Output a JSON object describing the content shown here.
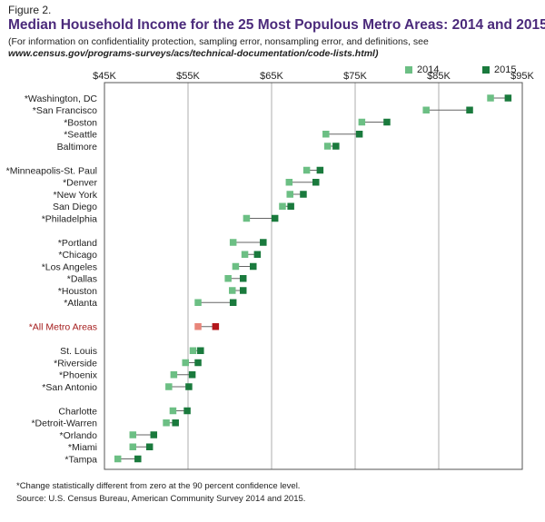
{
  "figure_label": "Figure 2.",
  "title": "Median Household Income for the 25 Most Populous Metro Areas: 2014 and 2015",
  "subtitle": {
    "line1": "(For information on confidentiality protection, sampling error, nonsampling error, and definitions, see",
    "line2": "www.census.gov/programs-surveys/acs/technical-documentation/code-lists.html)"
  },
  "footnotes": {
    "note": "*Change statistically different from zero at the 90 percent confidence level.",
    "source": "Source: U.S. Census Bureau, American Community Survey 2014 and 2015."
  },
  "colors": {
    "c2014": "#6cbf84",
    "c2015": "#1a7a3d",
    "all_2014": "#e8857a",
    "all_2015": "#b3171c",
    "all_label": "#a41c1c",
    "grid": "#9a9a9a",
    "connector": "#666666",
    "axis_box": "#555555"
  },
  "chart_data": {
    "type": "scatter",
    "xlim": [
      45000,
      95000
    ],
    "xticks": [
      {
        "value": 45000,
        "label": "$45K"
      },
      {
        "value": 55000,
        "label": "$55K"
      },
      {
        "value": 65000,
        "label": "$65K"
      },
      {
        "value": 75000,
        "label": "$75K"
      },
      {
        "value": 85000,
        "label": "$85K"
      },
      {
        "value": 95000,
        "label": "$95K"
      }
    ],
    "series": [
      {
        "name": "2014"
      },
      {
        "name": "2015"
      }
    ],
    "groups": [
      [
        {
          "name": "*Washington, DC",
          "v2014": 91200,
          "v2015": 93300
        },
        {
          "name": "*San Francisco",
          "v2014": 83500,
          "v2015": 88700
        },
        {
          "name": "*Boston",
          "v2014": 75800,
          "v2015": 78800
        },
        {
          "name": "*Seattle",
          "v2014": 71500,
          "v2015": 75500
        },
        {
          "name": "Baltimore",
          "v2014": 71700,
          "v2015": 72700
        }
      ],
      [
        {
          "name": "*Minneapolis-St. Paul",
          "v2014": 69200,
          "v2015": 70800
        },
        {
          "name": "*Denver",
          "v2014": 67100,
          "v2015": 70300
        },
        {
          "name": "*New York",
          "v2014": 67200,
          "v2015": 68800
        },
        {
          "name": "San Diego",
          "v2014": 66300,
          "v2015": 67300
        },
        {
          "name": "*Philadelphia",
          "v2014": 62000,
          "v2015": 65400
        }
      ],
      [
        {
          "name": "*Portland",
          "v2014": 60400,
          "v2015": 64000
        },
        {
          "name": "*Chicago",
          "v2014": 61800,
          "v2015": 63300
        },
        {
          "name": "*Los Angeles",
          "v2014": 60700,
          "v2015": 62800
        },
        {
          "name": "*Dallas",
          "v2014": 59800,
          "v2015": 61600
        },
        {
          "name": "*Houston",
          "v2014": 60300,
          "v2015": 61600
        },
        {
          "name": "*Atlanta",
          "v2014": 56200,
          "v2015": 60400
        }
      ],
      [
        {
          "name": "*All Metro Areas",
          "v2014": 56200,
          "v2015": 58300,
          "highlight": true
        }
      ],
      [
        {
          "name": "St. Louis",
          "v2014": 55600,
          "v2015": 56500
        },
        {
          "name": "*Riverside",
          "v2014": 54700,
          "v2015": 56200
        },
        {
          "name": "*Phoenix",
          "v2014": 53300,
          "v2015": 55500
        },
        {
          "name": "*San Antonio",
          "v2014": 52700,
          "v2015": 55100
        }
      ],
      [
        {
          "name": "Charlotte",
          "v2014": 53200,
          "v2015": 54900
        },
        {
          "name": "*Detroit-Warren",
          "v2014": 52400,
          "v2015": 53500
        },
        {
          "name": "*Orlando",
          "v2014": 48400,
          "v2015": 50900
        },
        {
          "name": "*Miami",
          "v2014": 48400,
          "v2015": 50400
        },
        {
          "name": "*Tampa",
          "v2014": 46600,
          "v2015": 49000
        }
      ]
    ],
    "grid": true,
    "legend_position": "top-right"
  }
}
